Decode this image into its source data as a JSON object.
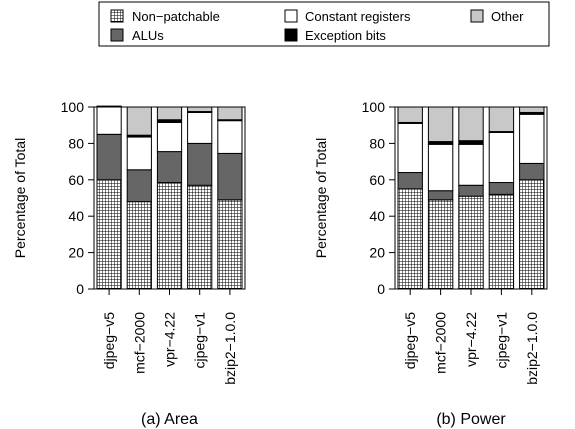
{
  "legend": {
    "items": [
      {
        "label": "Non−patchable",
        "pattern": "grid-hatch"
      },
      {
        "label": "Constant registers",
        "color": "#ffffff"
      },
      {
        "label": "Other",
        "color": "#c8c8c8"
      },
      {
        "label": "ALUs",
        "color": "#666666"
      },
      {
        "label": "Exception bits",
        "color": "#000000"
      }
    ]
  },
  "chart_data": [
    {
      "type": "bar",
      "stacked": true,
      "title": "(a) Area",
      "xlabel": "",
      "ylabel": "Percentage of Total",
      "ylim": [
        0,
        100
      ],
      "yticks": [
        "0",
        "20",
        "40",
        "60",
        "80",
        "100"
      ],
      "categories": [
        "djpeg−v5",
        "mcf−2000",
        "vpr−4.22",
        "cjpeg−v1",
        "bzip2−1.0.0"
      ],
      "series": [
        {
          "name": "Non−patchable",
          "values": [
            60,
            48,
            58.5,
            57,
            49
          ]
        },
        {
          "name": "ALUs",
          "values": [
            25,
            17.5,
            17,
            23,
            25.5
          ]
        },
        {
          "name": "Constant registers",
          "values": [
            15,
            18,
            16,
            17,
            18
          ]
        },
        {
          "name": "Exception bits",
          "values": [
            0.5,
            1,
            1.5,
            0.5,
            0.5
          ]
        },
        {
          "name": "Other",
          "values": [
            0,
            15.5,
            7,
            2.5,
            7
          ]
        }
      ]
    },
    {
      "type": "bar",
      "stacked": true,
      "title": "(b) Power",
      "xlabel": "",
      "ylabel": "Percentage of Total",
      "ylim": [
        0,
        100
      ],
      "yticks": [
        "0",
        "20",
        "40",
        "60",
        "80",
        "100"
      ],
      "categories": [
        "djpeg−v5",
        "mcf−2000",
        "vpr−4.22",
        "cjpeg−v1",
        "bzip2−1.0.0"
      ],
      "series": [
        {
          "name": "Non−patchable",
          "values": [
            55,
            49,
            51,
            52,
            60
          ]
        },
        {
          "name": "ALUs",
          "values": [
            9,
            5,
            6,
            6.5,
            9
          ]
        },
        {
          "name": "Constant registers",
          "values": [
            27,
            25.5,
            22.5,
            27.5,
            27
          ]
        },
        {
          "name": "Exception bits",
          "values": [
            0.5,
            1.5,
            2,
            0.5,
            1
          ]
        },
        {
          "name": "Other",
          "values": [
            8.5,
            19,
            18.5,
            13.5,
            3
          ]
        }
      ]
    }
  ]
}
